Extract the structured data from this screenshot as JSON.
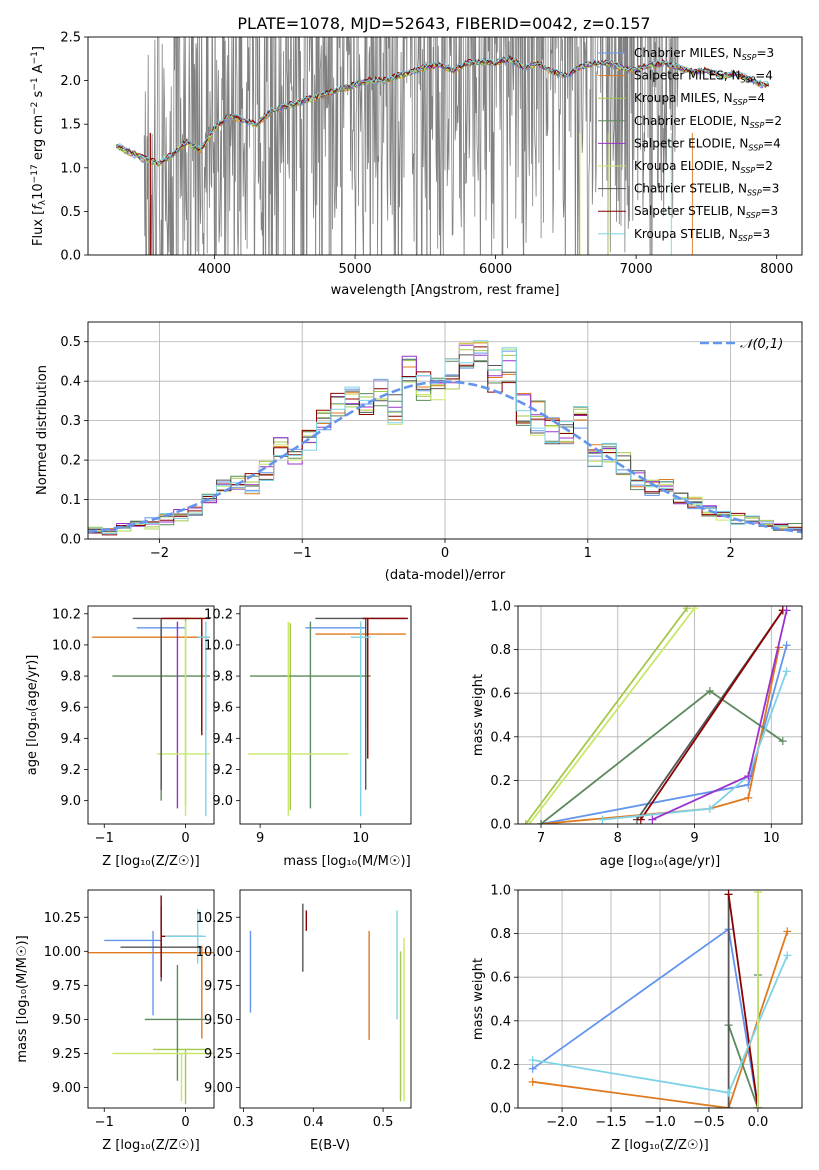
{
  "figure": {
    "title": "PLATE=1078, MJD=52643, FIBERID=0042, z=0.157"
  },
  "colors": {
    "palette": [
      "#6495ed",
      "#e07a1f",
      "#a3c84a",
      "#9a32cd",
      "#c8e86a",
      "#5c8a5c",
      "#8b0000",
      "#7fd3e6",
      "#e87fb8"
    ],
    "spectrum_data": "#808080",
    "normal_curve": "#6495ed"
  },
  "series": [
    {
      "name": "Chabrier MILES, N_SSP=3",
      "label_main": "Chabrier MILES, N",
      "label_sub": "SSP",
      "label_tail": "=3",
      "color": "#6495ed"
    },
    {
      "name": "Salpeter MILES, N_SSP=4",
      "label_main": "Salpeter MILES, N",
      "label_sub": "SSP",
      "label_tail": "=4",
      "color": "#e07a1f"
    },
    {
      "name": "Kroupa MILES, N_SSP=4",
      "label_main": "Kroupa MILES, N",
      "label_sub": "SSP",
      "label_tail": "=4",
      "color": "#a3c84a"
    },
    {
      "name": "Chabrier ELODIE, N_SSP=2",
      "label_main": "Chabrier ELODIE, N",
      "label_sub": "SSP",
      "label_tail": "=2",
      "color": "#5c8a5c"
    },
    {
      "name": "Salpeter ELODIE, N_SSP=4",
      "label_main": "Salpeter ELODIE, N",
      "label_sub": "SSP",
      "label_tail": "=4",
      "color": "#9a32cd"
    },
    {
      "name": "Kroupa ELODIE, N_SSP=2",
      "label_main": "Kroupa ELODIE, N",
      "label_sub": "SSP",
      "label_tail": "=2",
      "color": "#c8e86a"
    },
    {
      "name": "Chabrier STELIB, N_SSP=3",
      "label_main": "Chabrier STELIB, N",
      "label_sub": "SSP",
      "label_tail": "=3",
      "color": "#555555"
    },
    {
      "name": "Salpeter STELIB, N_SSP=3",
      "label_main": "Salpeter STELIB, N",
      "label_sub": "SSP",
      "label_tail": "=3",
      "color": "#8b0000"
    },
    {
      "name": "Kroupa STELIB, N_SSP=3",
      "label_main": "Kroupa STELIB, N",
      "label_sub": "SSP",
      "label_tail": "=3",
      "color": "#7fd3e6"
    }
  ],
  "chart_data": [
    {
      "id": "spectrum",
      "type": "line",
      "xlabel": "wavelength [Angstrom, rest frame]",
      "ylabel": "Flux [f_λ 10^-17 erg cm^-2 s^-1 A^-1]",
      "ylabel_parts": [
        "Flux [",
        "f",
        "λ",
        "10",
        "−17",
        " erg cm",
        "−2",
        " s",
        "−1",
        " A",
        "−1",
        "]"
      ],
      "xlim": [
        3100,
        8180
      ],
      "ylim": [
        0,
        2.5
      ],
      "xticks": [
        4000,
        5000,
        6000,
        7000,
        8000
      ],
      "yticks": [
        0.0,
        0.5,
        1.0,
        1.5,
        2.0,
        2.5
      ],
      "legend": "upper-right",
      "grid": false,
      "model_envelope": {
        "x": [
          3300,
          3400,
          3500,
          3600,
          3700,
          3800,
          3900,
          4000,
          4100,
          4200,
          4300,
          4400,
          4500,
          4600,
          4700,
          4800,
          4900,
          5000,
          5100,
          5200,
          5300,
          5400,
          5500,
          5600,
          5700,
          5800,
          5900,
          6000,
          6100,
          6200,
          6300,
          6400,
          6500,
          6600,
          6700,
          6800,
          6900,
          7000,
          7100,
          7200,
          7300,
          7400,
          7500,
          7600,
          7700,
          7800,
          7900
        ],
        "y": [
          1.25,
          1.18,
          1.1,
          1.05,
          1.15,
          1.3,
          1.2,
          1.45,
          1.6,
          1.55,
          1.5,
          1.65,
          1.7,
          1.75,
          1.8,
          1.85,
          1.9,
          1.95,
          2.0,
          2.0,
          2.05,
          2.1,
          2.15,
          2.18,
          2.12,
          2.2,
          2.22,
          2.2,
          2.25,
          2.15,
          2.2,
          2.1,
          2.05,
          2.15,
          2.2,
          2.2,
          2.15,
          2.12,
          2.18,
          2.2,
          2.15,
          2.1,
          2.12,
          2.05,
          2.08,
          2.02,
          1.95
        ]
      },
      "data_range_x": [
        3500,
        7300
      ]
    },
    {
      "id": "residuals",
      "type": "line",
      "xlabel": "(data-model)/error",
      "ylabel": "Normed distribution",
      "xlim": [
        -2.5,
        2.5
      ],
      "ylim": [
        0,
        0.55
      ],
      "xticks": [
        -2,
        -1,
        0,
        1,
        2
      ],
      "yticks": [
        0.0,
        0.1,
        0.2,
        0.3,
        0.4,
        0.5
      ],
      "legend": "upper-right",
      "legend_label": "𝒩(0,1)",
      "grid": true,
      "bins_center": [
        -2.45,
        -2.35,
        -2.25,
        -2.15,
        -2.05,
        -1.95,
        -1.85,
        -1.75,
        -1.65,
        -1.55,
        -1.45,
        -1.35,
        -1.25,
        -1.15,
        -1.05,
        -0.95,
        -0.85,
        -0.75,
        -0.65,
        -0.55,
        -0.45,
        -0.35,
        -0.25,
        -0.15,
        -0.05,
        0.05,
        0.15,
        0.25,
        0.35,
        0.45,
        0.55,
        0.65,
        0.75,
        0.85,
        0.95,
        1.05,
        1.15,
        1.25,
        1.35,
        1.45,
        1.55,
        1.65,
        1.75,
        1.85,
        1.95,
        2.05,
        2.15,
        2.25,
        2.35,
        2.45
      ],
      "histogram_mean": [
        0.02,
        0.02,
        0.03,
        0.04,
        0.04,
        0.05,
        0.06,
        0.08,
        0.1,
        0.13,
        0.14,
        0.14,
        0.17,
        0.23,
        0.21,
        0.25,
        0.3,
        0.34,
        0.36,
        0.34,
        0.37,
        0.33,
        0.42,
        0.39,
        0.37,
        0.42,
        0.46,
        0.47,
        0.4,
        0.44,
        0.33,
        0.3,
        0.28,
        0.26,
        0.3,
        0.21,
        0.22,
        0.19,
        0.15,
        0.13,
        0.14,
        0.1,
        0.09,
        0.07,
        0.06,
        0.05,
        0.05,
        0.04,
        0.03,
        0.03
      ],
      "histogram_spread": [
        0.01,
        0.01,
        0.01,
        0.01,
        0.015,
        0.015,
        0.015,
        0.02,
        0.02,
        0.02,
        0.02,
        0.03,
        0.03,
        0.03,
        0.03,
        0.03,
        0.03,
        0.03,
        0.03,
        0.03,
        0.04,
        0.04,
        0.05,
        0.04,
        0.04,
        0.04,
        0.04,
        0.04,
        0.05,
        0.05,
        0.05,
        0.05,
        0.04,
        0.04,
        0.04,
        0.03,
        0.03,
        0.03,
        0.03,
        0.02,
        0.02,
        0.02,
        0.02,
        0.02,
        0.015,
        0.015,
        0.01,
        0.01,
        0.01,
        0.01
      ]
    },
    {
      "id": "age-vs-Z",
      "type": "scatter",
      "xlabel": "Z [log10(Z/Z☉)]",
      "ylabel": "age  [log10(age/yr)]",
      "xlim": [
        -1.2,
        0.35
      ],
      "ylim": [
        8.85,
        10.25
      ],
      "xticks": [
        -1,
        0
      ],
      "yticks": [
        9.0,
        9.2,
        9.4,
        9.6,
        9.8,
        10.0,
        10.2
      ],
      "points": [
        {
          "s": 0,
          "x": -0.3,
          "y": 10.11,
          "xerr": [
            0.0,
            0.0
          ],
          "yerr": [
            0.6,
            0.0
          ]
        },
        {
          "s": 0,
          "x": -0.3,
          "y": 10.11,
          "xerr": [
            0.3,
            0.3
          ],
          "yerr": [
            0,
            0
          ]
        },
        {
          "s": 1,
          "x": 0.2,
          "y": 10.05,
          "xerr": [
            1.35,
            0.1
          ],
          "yerr": [
            0.6,
            0.1
          ]
        },
        {
          "s": 2,
          "x": 0.0,
          "y": 10.17,
          "xerr": [
            0.2,
            0.2
          ],
          "yerr": [
            1.2,
            0
          ]
        },
        {
          "s": 3,
          "x": -0.3,
          "y": 9.8,
          "xerr": [
            0.6,
            0.6
          ],
          "yerr": [
            0.8,
            0.3
          ]
        },
        {
          "s": 4,
          "x": -0.1,
          "y": 9.8,
          "xerr": [
            0,
            0
          ],
          "yerr": [
            0.85,
            0.35
          ]
        },
        {
          "s": 5,
          "x": 0.0,
          "y": 9.3,
          "xerr": [
            0.35,
            0.3
          ],
          "yerr": [
            0.4,
            0.85
          ]
        },
        {
          "s": 6,
          "x": -0.3,
          "y": 10.17,
          "xerr": [
            0.35,
            0.35
          ],
          "yerr": [
            1.1,
            0
          ]
        },
        {
          "s": 7,
          "x": 0.2,
          "y": 10.17,
          "xerr": [
            0.5,
            0.1
          ],
          "yerr": [
            0.75,
            0
          ]
        },
        {
          "s": 8,
          "x": 0.25,
          "y": 10.05,
          "xerr": [
            0.1,
            0.05
          ],
          "yerr": [
            1.15,
            0.1
          ]
        }
      ]
    },
    {
      "id": "age-vs-mass",
      "type": "scatter",
      "xlabel": "mass [log10(M/M☉)]",
      "ylabel": "",
      "xlim": [
        8.8,
        10.5
      ],
      "ylim": [
        8.85,
        10.25
      ],
      "xticks": [
        9,
        10
      ],
      "yticks": [
        9.0,
        9.2,
        9.4,
        9.6,
        9.8,
        10.0,
        10.2
      ],
      "points": [
        {
          "s": 0,
          "x": 9.55,
          "y": 10.11,
          "xerr": [
            0.1,
            0.5
          ],
          "yerr": [
            0,
            0
          ]
        },
        {
          "s": 1,
          "x": 10.05,
          "y": 10.07,
          "xerr": [
            0.5,
            0.4
          ],
          "yerr": [
            0.6,
            0.1
          ]
        },
        {
          "s": 2,
          "x": 9.3,
          "y": 10.14,
          "xerr": [
            0,
            0
          ],
          "yerr": [
            1.2,
            0
          ]
        },
        {
          "s": 3,
          "x": 9.5,
          "y": 9.8,
          "xerr": [
            0.6,
            0.6
          ],
          "yerr": [
            0.85,
            0.35
          ]
        },
        {
          "s": 5,
          "x": 9.28,
          "y": 9.3,
          "xerr": [
            0.4,
            0.6
          ],
          "yerr": [
            0.4,
            0.85
          ]
        },
        {
          "s": 6,
          "x": 10.05,
          "y": 10.17,
          "xerr": [
            0.5,
            0.4
          ],
          "yerr": [
            1.1,
            0
          ]
        },
        {
          "s": 7,
          "x": 10.07,
          "y": 10.17,
          "xerr": [
            0.05,
            0.4
          ],
          "yerr": [
            0.9,
            0
          ]
        },
        {
          "s": 8,
          "x": 10.0,
          "y": 10.05,
          "xerr": [
            0.1,
            0.1
          ],
          "yerr": [
            1.15,
            0.1
          ]
        }
      ]
    },
    {
      "id": "massweight-vs-age",
      "type": "line",
      "xlabel": "age  [log10(age/yr)]",
      "ylabel": "mass weight",
      "xlim": [
        6.7,
        10.4
      ],
      "ylim": [
        0,
        1.0
      ],
      "xticks": [
        7,
        8,
        9,
        10
      ],
      "yticks": [
        0.0,
        0.2,
        0.4,
        0.6,
        0.8,
        1.0
      ],
      "grid": true,
      "series": [
        {
          "s": 0,
          "x": [
            7.0,
            9.7,
            10.2
          ],
          "y": [
            0.0,
            0.18,
            0.82
          ]
        },
        {
          "s": 1,
          "x": 7.0,
          "_": "",
          "xs": [
            7.0,
            9.2,
            9.7,
            10.1
          ],
          "ys": [
            0.0,
            0.07,
            0.12,
            0.81
          ]
        },
        {
          "s": 2,
          "x": [
            6.8,
            8.9
          ],
          "y": [
            0.0,
            0.99
          ]
        },
        {
          "s": 3,
          "x": [
            7.0,
            9.2,
            10.15
          ],
          "y": [
            0.0,
            0.61,
            0.38
          ]
        },
        {
          "s": 5,
          "x": [
            6.85,
            9.0
          ],
          "y": [
            0.0,
            0.99
          ]
        },
        {
          "s": 6,
          "x": [
            8.25,
            10.15
          ],
          "y": [
            0.02,
            0.98
          ]
        },
        {
          "s": 7,
          "x": [
            8.3,
            10.15
          ],
          "y": [
            0.02,
            0.98
          ]
        },
        {
          "s": 8,
          "x": [
            7.8,
            9.2,
            9.7,
            10.2
          ],
          "y": [
            0.02,
            0.07,
            0.22,
            0.7
          ]
        },
        {
          "s": 4,
          "x": [
            8.45,
            9.7,
            10.2
          ],
          "y": [
            0.02,
            0.22,
            0.98
          ]
        }
      ]
    },
    {
      "id": "mass-vs-Z",
      "type": "scatter",
      "xlabel": "Z [log10(Z/Z☉)]",
      "ylabel": "mass [log10(M/M☉)]",
      "xlim": [
        -1.2,
        0.35
      ],
      "ylim": [
        8.85,
        10.45
      ],
      "xticks": [
        -1,
        0
      ],
      "yticks": [
        9.0,
        9.25,
        9.5,
        9.75,
        10.0,
        10.25
      ],
      "points": [
        {
          "s": 0,
          "x": -0.4,
          "y": 10.08,
          "xerr": [
            0.6,
            0.1
          ],
          "yerr": [
            0.55,
            0.07
          ]
        },
        {
          "s": 1,
          "x": 0.2,
          "y": 9.99,
          "xerr": [
            1.4,
            0.15
          ],
          "yerr": [
            0.63,
            0.05
          ]
        },
        {
          "s": 2,
          "x": 0.0,
          "y": 9.28,
          "xerr": [
            0.4,
            0.3
          ],
          "yerr": [
            0.4,
            0.0
          ]
        },
        {
          "s": 3,
          "x": -0.1,
          "y": 9.5,
          "xerr": [
            0.4,
            0.35
          ],
          "yerr": [
            0.45,
            0.4
          ]
        },
        {
          "s": 5,
          "x": -0.05,
          "y": 9.25,
          "xerr": [
            0.85,
            0.4
          ],
          "yerr": [
            0.35,
            0.0
          ]
        },
        {
          "s": 6,
          "x": -0.3,
          "y": 10.03,
          "xerr": [
            0.5,
            0.5
          ],
          "yerr": [
            0.25,
            0.3
          ]
        },
        {
          "s": 7,
          "x": -0.3,
          "y": 10.11,
          "xerr": [
            0.0,
            0.5
          ],
          "yerr": [
            0.3,
            0.3
          ]
        },
        {
          "s": 8,
          "x": 0.15,
          "y": 10.11,
          "xerr": [
            0.4,
            0.1
          ],
          "yerr": [
            0.2,
            0.2
          ]
        }
      ]
    },
    {
      "id": "mass-vs-ebv",
      "type": "scatter",
      "xlabel": "E(B-V)",
      "ylabel": "",
      "xlim": [
        0.295,
        0.54
      ],
      "ylim": [
        8.85,
        10.45
      ],
      "xticks": [
        0.3,
        0.4,
        0.5
      ],
      "yticks": [
        9.0,
        9.25,
        9.5,
        9.75,
        10.0,
        10.25
      ],
      "points": [
        {
          "s": 0,
          "x": 0.31,
          "y": 9.85,
          "xerr": [
            0,
            0
          ],
          "yerr": [
            0.3,
            0.3
          ]
        },
        {
          "s": 1,
          "x": 0.48,
          "y": 9.75,
          "xerr": [
            0,
            0
          ],
          "yerr": [
            0.4,
            0.4
          ]
        },
        {
          "s": 6,
          "x": 0.385,
          "y": 10.15,
          "xerr": [
            0,
            0
          ],
          "yerr": [
            0.3,
            0.2
          ]
        },
        {
          "s": 7,
          "x": 0.39,
          "y": 10.25,
          "xerr": [
            0,
            0
          ],
          "yerr": [
            0.1,
            0.05
          ]
        },
        {
          "s": 8,
          "x": 0.52,
          "y": 10.0,
          "xerr": [
            0,
            0
          ],
          "yerr": [
            0.5,
            0.3
          ]
        },
        {
          "s": 2,
          "x": 0.525,
          "y": 9.5,
          "xerr": [
            0,
            0
          ],
          "yerr": [
            0.6,
            0.5
          ]
        },
        {
          "s": 5,
          "x": 0.53,
          "y": 9.6,
          "xerr": [
            0,
            0
          ],
          "yerr": [
            0.7,
            0.5
          ]
        }
      ]
    },
    {
      "id": "massweight-vs-Z",
      "type": "line",
      "xlabel": "Z [log10(Z/Z☉)]",
      "ylabel": "mass weight",
      "xlim": [
        -2.45,
        0.45
      ],
      "ylim": [
        0,
        1.0
      ],
      "xticks": [
        -2.0,
        -1.5,
        -1.0,
        -0.5,
        0.0
      ],
      "yticks": [
        0.0,
        0.2,
        0.4,
        0.6,
        0.8,
        1.0
      ],
      "grid": true,
      "series": [
        {
          "s": 0,
          "x": [
            -2.3,
            -0.3,
            0.0
          ],
          "y": [
            0.18,
            0.82,
            0.0
          ]
        },
        {
          "s": 1,
          "x": [
            -2.3,
            -0.3,
            0.3
          ],
          "y": [
            0.12,
            0.0,
            0.81
          ]
        },
        {
          "s": 2,
          "x": [
            0.0,
            0.0
          ],
          "y": [
            0.0,
            0.99
          ]
        },
        {
          "s": 3,
          "x": [
            -0.3,
            0.0,
            0.0
          ],
          "y": [
            0.38,
            0.0,
            0.61
          ]
        },
        {
          "s": 6,
          "x": [
            -0.3,
            -0.3
          ],
          "y": [
            0.0,
            0.98
          ]
        },
        {
          "s": 7,
          "x": [
            -0.3,
            0.0
          ],
          "y": [
            0.98,
            0.0
          ]
        },
        {
          "s": 8,
          "x": [
            -2.3,
            -0.3,
            0.3
          ],
          "y": [
            0.22,
            0.07,
            0.7
          ]
        },
        {
          "s": 5,
          "x": [
            0.0,
            0.0
          ],
          "y": [
            0.0,
            0.99
          ]
        }
      ]
    }
  ]
}
